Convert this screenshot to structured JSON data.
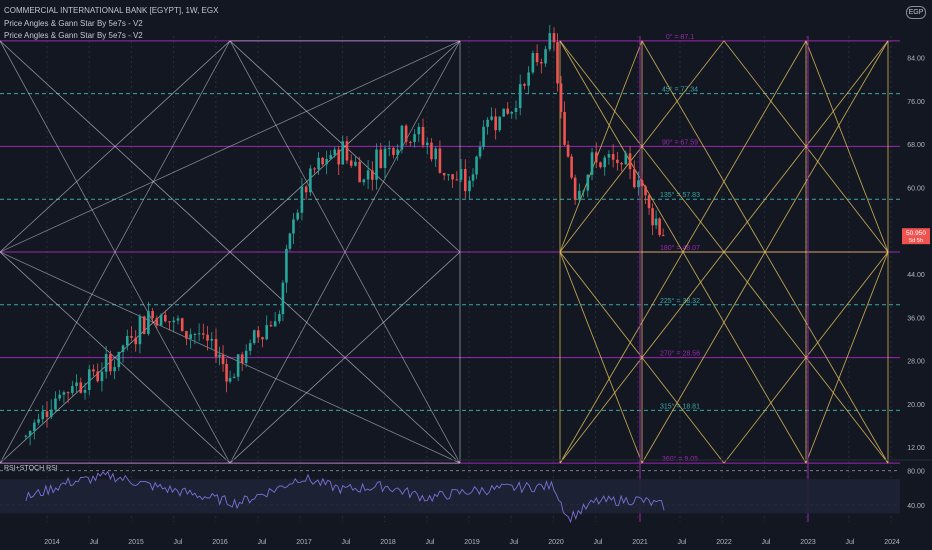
{
  "header": {
    "title": "COMMERCIAL INTERNATIONAL BANK [EGYPT], 1W, EGX",
    "indicator_1": "Price Angles & Gann Star By 5e7s - V2",
    "indicator_2": "Price Angles & Gann Star By 5e7s - V2",
    "currency_badge": "EGP"
  },
  "rsi": {
    "label": "RSI+STOCH RSI",
    "ticks": [
      "80.00",
      "40.00"
    ]
  },
  "price_badge": {
    "line1": "50.950",
    "line2": "5d 5h"
  },
  "colors": {
    "background": "#131722",
    "grid": "#2a2e39",
    "up": "#26a69a",
    "down": "#ef5350",
    "gann_left": "#c9cdd6",
    "gann_right": "#e6c35c",
    "purple": "#9c27b0",
    "teal": "#39a8a4",
    "rsi_line": "#7e6fd6",
    "price_badge": "#ef5350"
  },
  "chart_data": {
    "type": "candlestick",
    "x_ticks": [
      "2014",
      "Jul",
      "2015",
      "Jul",
      "2016",
      "Jul",
      "2017",
      "Jul",
      "2018",
      "Jul",
      "2019",
      "Jul",
      "2020",
      "Jul",
      "2021",
      "Jul",
      "2022",
      "Jul",
      "2023",
      "Jul",
      "2024"
    ],
    "y_ticks": [
      12,
      20,
      28,
      36,
      44,
      52,
      60,
      68,
      76,
      84
    ],
    "ylim": [
      10,
      88
    ],
    "gann_levels": [
      {
        "label": "0° = 87.1",
        "value": 87.1,
        "style": "purple"
      },
      {
        "label": "45° = 77.34",
        "value": 77.34,
        "style": "teal"
      },
      {
        "label": "90° = 67.59",
        "value": 67.59,
        "style": "purple"
      },
      {
        "label": "135° = 57.83",
        "value": 57.83,
        "style": "teal"
      },
      {
        "label": "180° = 48.07",
        "value": 48.07,
        "style": "purple"
      },
      {
        "label": "225° = 38.32",
        "value": 38.32,
        "style": "teal"
      },
      {
        "label": "270° = 28.56",
        "value": 28.56,
        "style": "purple"
      },
      {
        "label": "315° = 18.81",
        "value": 18.81,
        "style": "teal"
      },
      {
        "label": "360° = 9.05",
        "value": 9.05,
        "style": "purple"
      }
    ],
    "price_path": [
      [
        "2013-10",
        14
      ],
      [
        "2014-01",
        20
      ],
      [
        "2014-04",
        23
      ],
      [
        "2014-07",
        25
      ],
      [
        "2014-10",
        27
      ],
      [
        "2015-01",
        33
      ],
      [
        "2015-04",
        37
      ],
      [
        "2015-07",
        35
      ],
      [
        "2015-10",
        33
      ],
      [
        "2016-01",
        30
      ],
      [
        "2016-03",
        25
      ],
      [
        "2016-07",
        33
      ],
      [
        "2016-10",
        37
      ],
      [
        "2016-12",
        55
      ],
      [
        "2017-03",
        63
      ],
      [
        "2017-07",
        67
      ],
      [
        "2017-10",
        62
      ],
      [
        "2018-01",
        67
      ],
      [
        "2018-04",
        71
      ],
      [
        "2018-07",
        68
      ],
      [
        "2018-10",
        62
      ],
      [
        "2019-01",
        60
      ],
      [
        "2019-03",
        72
      ],
      [
        "2019-07",
        75
      ],
      [
        "2019-10",
        82
      ],
      [
        "2020-01",
        87
      ],
      [
        "2020-02",
        72
      ],
      [
        "2020-04",
        60
      ],
      [
        "2020-07",
        65
      ],
      [
        "2020-10",
        64
      ],
      [
        "2021-01",
        62
      ],
      [
        "2021-03",
        55
      ],
      [
        "2021-05",
        51
      ]
    ],
    "rsi_path": [
      [
        "2013-10",
        48
      ],
      [
        "2014-04",
        66
      ],
      [
        "2014-10",
        74
      ],
      [
        "2015-04",
        62
      ],
      [
        "2015-10",
        52
      ],
      [
        "2016-04",
        42
      ],
      [
        "2016-10",
        60
      ],
      [
        "2017-01",
        72
      ],
      [
        "2017-07",
        58
      ],
      [
        "2018-01",
        62
      ],
      [
        "2018-07",
        48
      ],
      [
        "2019-01",
        56
      ],
      [
        "2019-07",
        60
      ],
      [
        "2020-01",
        62
      ],
      [
        "2020-03",
        24
      ],
      [
        "2020-07",
        44
      ],
      [
        "2021-01",
        46
      ],
      [
        "2021-05",
        38
      ]
    ],
    "rsi_ylim": [
      20,
      90
    ]
  }
}
